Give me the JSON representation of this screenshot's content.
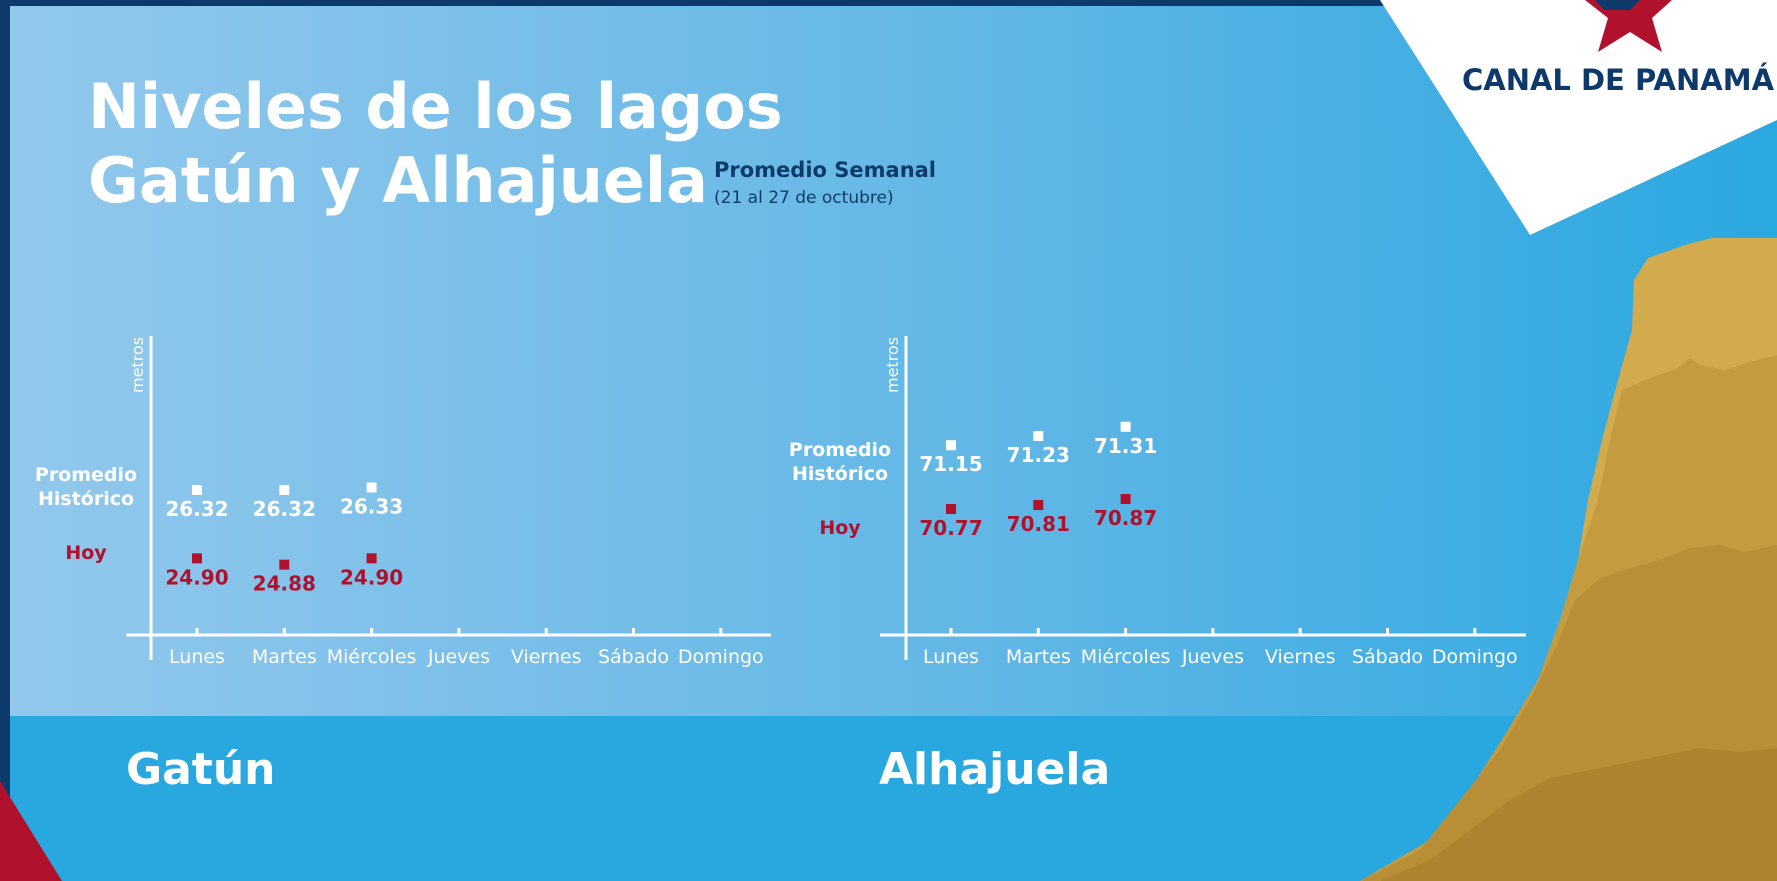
{
  "header": {
    "title_line1": "Niveles de los lagos",
    "title_line2": "Gatún y Alhajuela",
    "subtitle": "Promedio Semanal",
    "date_range": "(21 al 27 de octubre)"
  },
  "brand": {
    "name": "CANAL DE PANAMÁ"
  },
  "colors": {
    "sky_light": "#93c8ec",
    "sky": "#29a8e0",
    "navy": "#0d3a6a",
    "red": "#b0122e",
    "white": "#ffffff",
    "sand_light": "#d3ab4f",
    "sand": "#c49b3f",
    "sand_dark": "#ae8330"
  },
  "chart_data": [
    {
      "type": "scatter",
      "title": "Gatún",
      "ylabel": "metros",
      "categories": [
        "Lunes",
        "Martes",
        "Miércoles",
        "Jueves",
        "Viernes",
        "Sábado",
        "Domingo"
      ],
      "series": [
        {
          "name": "Promedio Histórico",
          "color": "#ffffff",
          "values": [
            26.32,
            26.32,
            26.33
          ]
        },
        {
          "name": "Hoy",
          "color": "#b0122e",
          "values": [
            24.9,
            24.88,
            24.9
          ]
        }
      ]
    },
    {
      "type": "scatter",
      "title": "Alhajuela",
      "ylabel": "metros",
      "categories": [
        "Lunes",
        "Martes",
        "Miércoles",
        "Jueves",
        "Viernes",
        "Sábado",
        "Domingo"
      ],
      "series": [
        {
          "name": "Promedio Histórico",
          "color": "#ffffff",
          "values": [
            71.15,
            71.23,
            71.31
          ]
        },
        {
          "name": "Hoy",
          "color": "#b0122e",
          "values": [
            70.77,
            70.81,
            70.87
          ]
        }
      ]
    }
  ]
}
